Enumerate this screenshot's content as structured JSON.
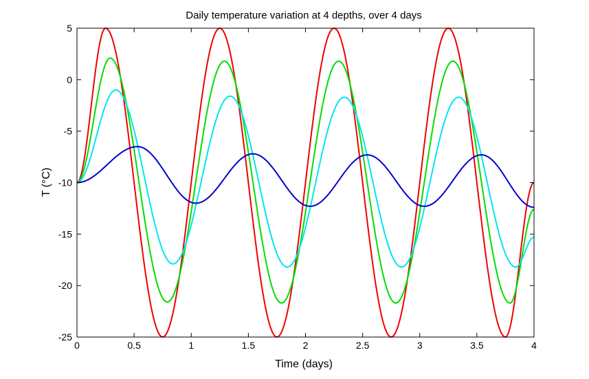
{
  "chart_data": {
    "type": "line",
    "title": "Daily temperature variation at 4 depths, over 4 days",
    "xlabel": "Time (days)",
    "ylabel": "T (°C)",
    "xlim": [
      0,
      4
    ],
    "ylim": [
      -25,
      5
    ],
    "xticks": [
      0,
      0.5,
      1,
      1.5,
      2,
      2.5,
      3,
      3.5,
      4
    ],
    "xtick_labels": [
      "0",
      "0.5",
      "1",
      "1.5",
      "2",
      "2.5",
      "3",
      "3.5",
      "4"
    ],
    "yticks": [
      -25,
      -20,
      -15,
      -10,
      -5,
      0,
      5
    ],
    "ytick_labels": [
      "-25",
      "-20",
      "-15",
      "-10",
      "-5",
      "0",
      "5"
    ],
    "grid": false,
    "series": [
      {
        "color": "#ee0000",
        "x": [
          0,
          0.25,
          0.75,
          1.25,
          1.75,
          2.25,
          2.75,
          3.25,
          3.75,
          4
        ],
        "y": [
          -10,
          5,
          -25,
          5,
          -25,
          5,
          -25,
          5,
          -25,
          -10
        ]
      },
      {
        "color": "#00dd00",
        "x": [
          0,
          0.29,
          0.79,
          1.29,
          1.79,
          2.29,
          2.79,
          3.29,
          3.79,
          4
        ],
        "y": [
          -10,
          2.1,
          -21.6,
          1.8,
          -21.7,
          1.8,
          -21.7,
          1.8,
          -21.7,
          -12.6
        ]
      },
      {
        "color": "#00e5ee",
        "x": [
          0,
          0.34,
          0.84,
          1.34,
          1.84,
          2.34,
          2.84,
          3.34,
          3.84,
          4
        ],
        "y": [
          -10,
          -1,
          -17.9,
          -1.6,
          -18.2,
          -1.7,
          -18.2,
          -1.7,
          -18.2,
          -15.3
        ]
      },
      {
        "color": "#0000cc",
        "x": [
          0,
          0.53,
          1.04,
          1.54,
          2.04,
          2.54,
          3.04,
          3.54,
          4
        ],
        "y": [
          -10,
          -6.5,
          -12,
          -7.2,
          -12.3,
          -7.3,
          -12.3,
          -7.3,
          -12.4
        ]
      }
    ]
  }
}
